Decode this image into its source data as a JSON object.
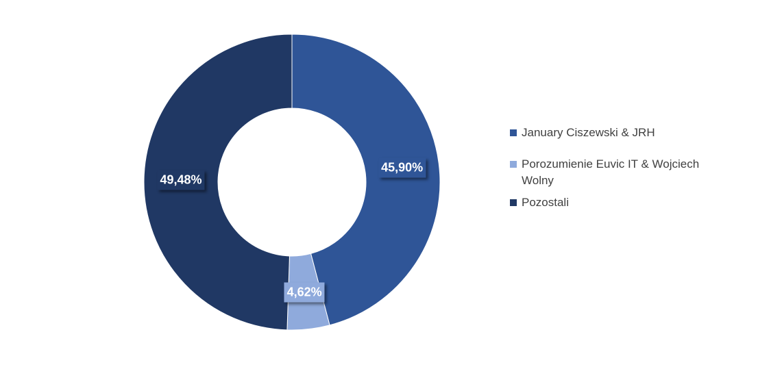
{
  "chart_data": {
    "type": "pie",
    "variant": "donut",
    "title": "",
    "series": [
      {
        "name": "January Ciszewski & JRH",
        "value": 45.9,
        "label": "45,90%",
        "color": "#2f5597"
      },
      {
        "name": "Porozumienie Euvic IT & Wojciech Wolny",
        "value": 4.62,
        "label": "4,62%",
        "color": "#8faadc"
      },
      {
        "name": "Pozostali",
        "value": 49.48,
        "label": "49,48%",
        "color": "#203864"
      }
    ],
    "legend_position": "right"
  }
}
